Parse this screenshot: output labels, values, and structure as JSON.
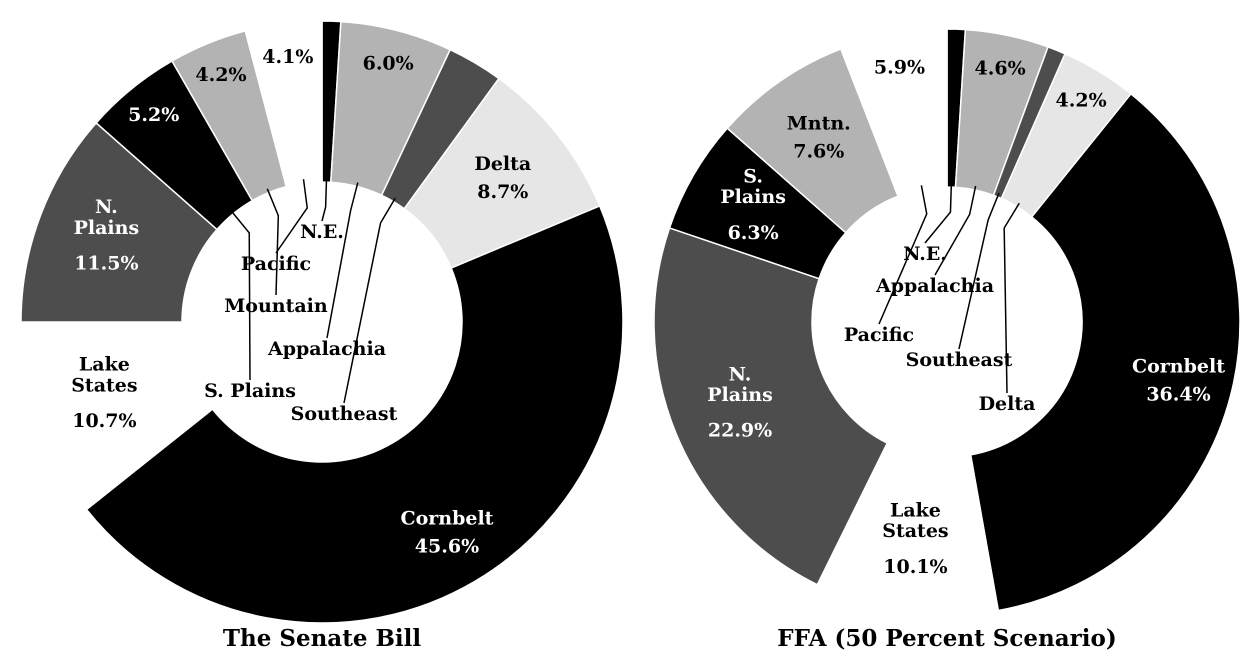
{
  "chart_data": [
    {
      "type": "pie",
      "title": "The Senate Bill",
      "categories": [
        "N.E.",
        "Appalachia",
        "Southeast",
        "Delta",
        "Cornbelt",
        "Lake States",
        "N. Plains",
        "S. Plains",
        "Mountain",
        "Pacific"
      ],
      "values": [
        1.0,
        6.0,
        3.0,
        8.7,
        45.6,
        10.7,
        11.5,
        5.2,
        4.2,
        4.1
      ],
      "value_labels": [
        null,
        "6.0%",
        null,
        "8.7%",
        "45.6%",
        "10.7%",
        "11.5%",
        "5.2%",
        "4.2%",
        "4.1%"
      ],
      "colors": [
        "#000000",
        "#b3b3b3",
        "#4d4d4d",
        "#e6e6e6",
        "#000000",
        "#ffffff",
        "#4d4d4d",
        "#000000",
        "#b3b3b3",
        "#ffffff"
      ]
    },
    {
      "type": "pie",
      "title": "FFA (50 Percent Scenario)",
      "categories": [
        "N.E.",
        "Appalachia",
        "Southeast",
        "Delta",
        "Cornbelt",
        "Lake States",
        "N. Plains",
        "S. Plains",
        "Mntn.",
        "Pacific"
      ],
      "values": [
        1.0,
        4.6,
        1.0,
        4.2,
        36.4,
        10.1,
        22.9,
        6.3,
        7.6,
        5.9
      ],
      "value_labels": [
        null,
        "4.6%",
        null,
        "4.2%",
        "36.4%",
        "10.1%",
        "22.9%",
        "6.3%",
        "7.6%",
        "5.9%"
      ],
      "colors": [
        "#000000",
        "#b3b3b3",
        "#4d4d4d",
        "#e6e6e6",
        "#000000",
        "#ffffff",
        "#4d4d4d",
        "#000000",
        "#b3b3b3",
        "#ffffff"
      ]
    }
  ]
}
